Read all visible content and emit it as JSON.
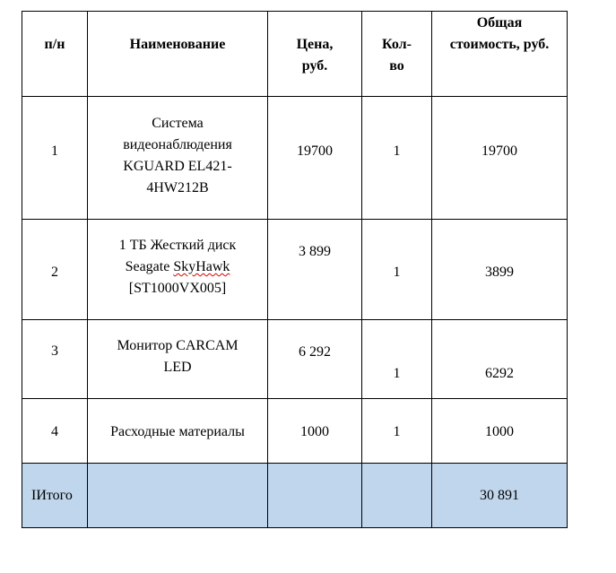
{
  "headers": [
    "п/н",
    "Наименование",
    "Цена, руб.",
    "Кол-во",
    "Общая стоимость, руб."
  ],
  "header_lines": {
    "price": [
      "Цена,",
      "руб."
    ],
    "qty": [
      "Кол-",
      "во"
    ],
    "total": [
      "Общая",
      "стоимость, руб."
    ]
  },
  "rows": [
    {
      "num": "1",
      "name_lines": [
        "Система",
        "видеонаблюдения",
        "KGUARD EL421-",
        "4HW212B"
      ],
      "price": "19700",
      "qty": "1",
      "total": "19700"
    },
    {
      "num": "2",
      "name_lines": [
        "1 ТБ Жесткий диск",
        "Seagate ",
        "SkyHawk",
        "[ST1000VX005]"
      ],
      "price": "3 899",
      "qty": "1",
      "total": "3899"
    },
    {
      "num": "3",
      "name_lines": [
        "Монитор CARCAM",
        "LED"
      ],
      "price": "6 292",
      "qty": "1",
      "total": "6292"
    },
    {
      "num": "4",
      "name_lines": [
        "Расходные материалы"
      ],
      "price": "1000",
      "qty": "1",
      "total": "1000"
    }
  ],
  "footer": {
    "label": "IИтого",
    "total": "30 891"
  },
  "colors": {
    "footer_fill": "#c0d6ec",
    "spellcheck": "#dd0000"
  }
}
